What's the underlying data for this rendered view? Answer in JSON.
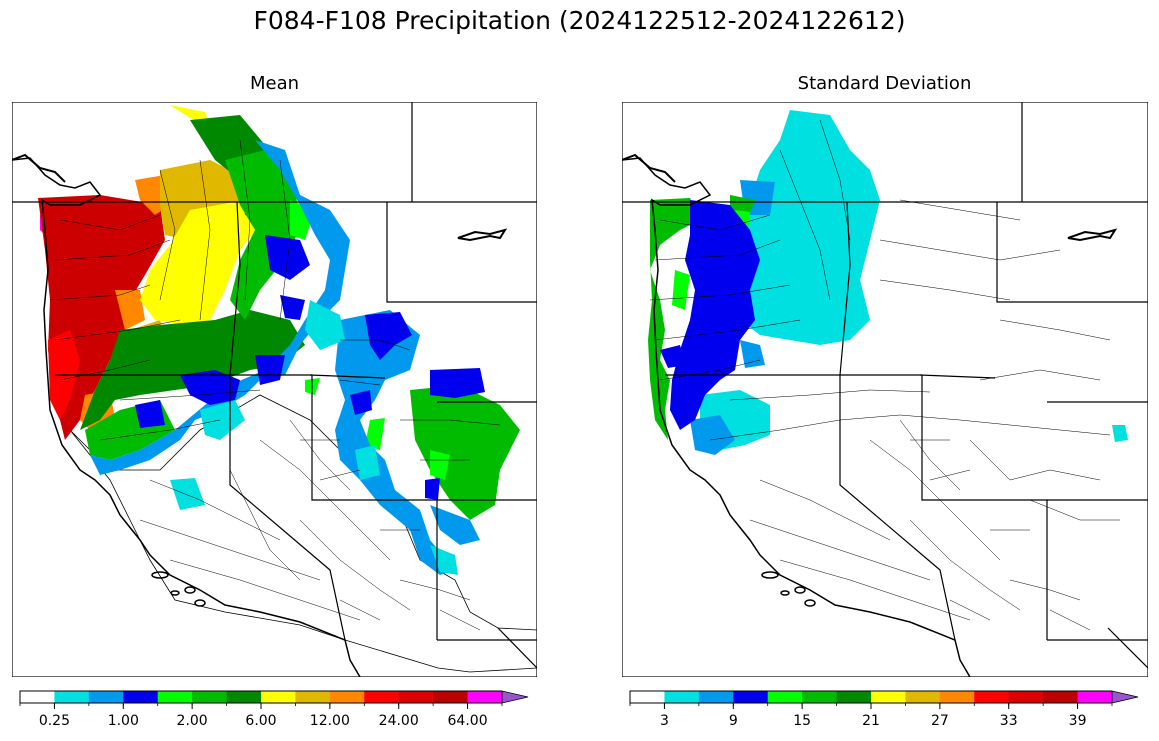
{
  "figure": {
    "title": "F084-F108 Precipitation (2024122512-2024122612)"
  },
  "panels": [
    {
      "id": "mean",
      "title": "Mean"
    },
    {
      "id": "std",
      "title": "Standard Deviation"
    }
  ],
  "colorbars": {
    "mean": {
      "colors": [
        "#ffffff",
        "#00e0e0",
        "#0099ee",
        "#0000ee",
        "#00ff00",
        "#00bb00",
        "#008800",
        "#ffff00",
        "#e0b800",
        "#ff8800",
        "#ff0000",
        "#dd0000",
        "#bb0000",
        "#ff00ff",
        "#9955cc"
      ],
      "tick_labels": [
        "0.25",
        "1.00",
        "2.00",
        "6.00",
        "12.00",
        "24.00",
        "64.00"
      ],
      "extend": "max"
    },
    "std": {
      "colors": [
        "#ffffff",
        "#00e0e0",
        "#0099ee",
        "#0000ee",
        "#00ff00",
        "#00bb00",
        "#008800",
        "#ffff00",
        "#e0b800",
        "#ff8800",
        "#ff0000",
        "#dd0000",
        "#bb0000",
        "#ff00ff",
        "#9955cc"
      ],
      "tick_labels": [
        "3",
        "9",
        "15",
        "21",
        "27",
        "33",
        "39"
      ],
      "extend": "max"
    }
  }
}
